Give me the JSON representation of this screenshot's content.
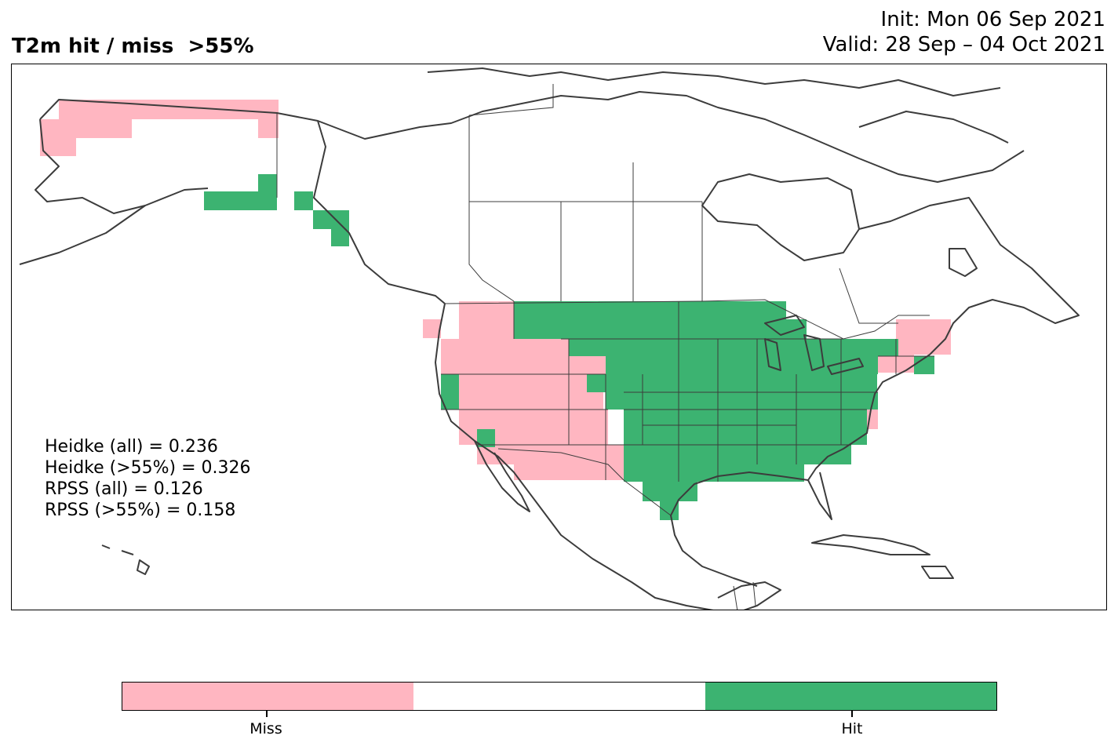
{
  "title": "T2m hit / miss  >55%",
  "init": "Init: Mon 06 Sep 2021",
  "valid": "Valid: 28 Sep – 04 Oct 2021",
  "stats": {
    "heidke_all": "Heidke (all) = 0.236",
    "heidke_55": "Heidke (>55%) = 0.326",
    "rpss_all": "RPSS (all) = 0.126",
    "rpss_55": "RPSS (>55%) = 0.158"
  },
  "legend": {
    "miss_label": "Miss",
    "hit_label": "Hit",
    "colors": {
      "miss": "#ffb6c1",
      "neutral": "#ffffff",
      "hit": "#3cb371"
    }
  },
  "map": {
    "region": "North America",
    "coastline_color": "#3c3c3c",
    "miss_regions": [
      "Alaska north",
      "Pacific Northwest",
      "Great Basin",
      "Southwest",
      "New England"
    ],
    "hit_regions": [
      "Alaska south coast",
      "Northern Plains",
      "Central Plains",
      "Texas",
      "Midwest",
      "Southeast",
      "Great Lakes",
      "Mid-Atlantic"
    ]
  }
}
